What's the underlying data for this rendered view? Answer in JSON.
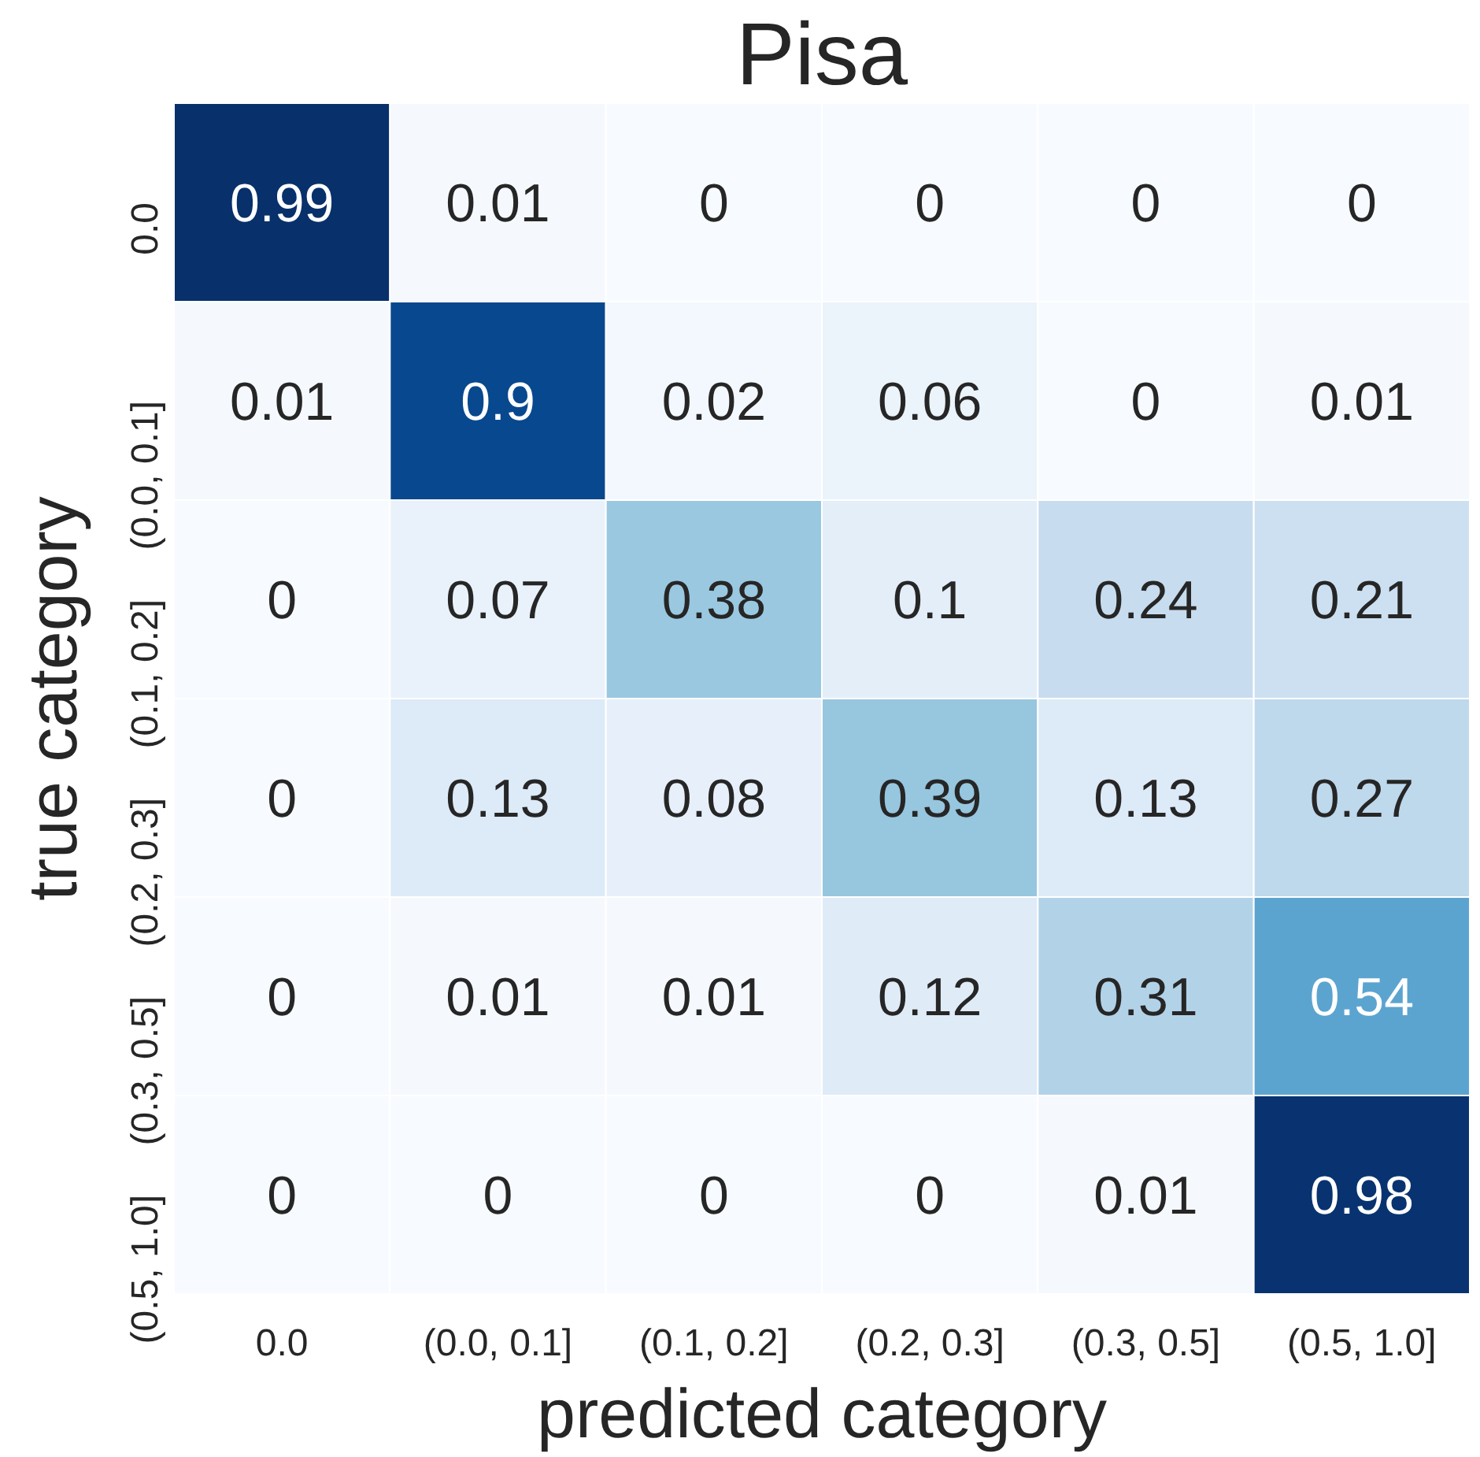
{
  "chart_data": {
    "type": "heatmap",
    "title": "Pisa",
    "xlabel": "predicted category",
    "ylabel": "true category",
    "categories": [
      "0.0",
      "(0.0, 0.1]",
      "(0.1, 0.2]",
      "(0.2, 0.3]",
      "(0.3, 0.5]",
      "(0.5, 1.0]"
    ],
    "y_categories": [
      "0.0",
      "(0.0, 0.1]",
      "(0.1, 0.2]",
      "(0.2, 0.3]",
      "(0.3, 0.5]",
      "(0.5, 1.0]"
    ],
    "cells": [
      [
        0.99,
        0.01,
        0,
        0,
        0,
        0
      ],
      [
        0.01,
        0.9,
        0.02,
        0.06,
        0,
        0.01
      ],
      [
        0,
        0.07,
        0.38,
        0.1,
        0.24,
        0.21
      ],
      [
        0,
        0.13,
        0.08,
        0.39,
        0.13,
        0.27
      ],
      [
        0,
        0.01,
        0.01,
        0.12,
        0.31,
        0.54
      ],
      [
        0,
        0,
        0,
        0,
        0.01,
        0.98
      ]
    ],
    "data_labels": true
  }
}
